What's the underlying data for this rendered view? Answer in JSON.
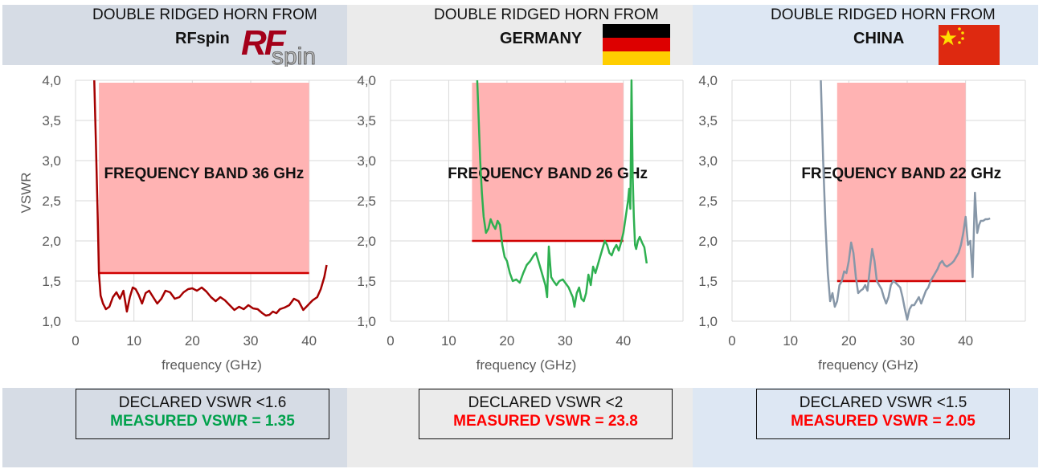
{
  "panels": [
    {
      "header_line1": "DOUBLE RIDGED HORN FROM",
      "header_line2": "RFspin",
      "logo_text": "RFspin",
      "band_label": "FREQUENCY BAND 36 GHz",
      "declared": "DECLARED VSWR <1.6",
      "measured": "MEASURED VSWR = 1.35",
      "measured_color": "#00a14b",
      "header_bg": "#d6dce5",
      "footer_bg": "#d6dce5"
    },
    {
      "header_line1": "DOUBLE RIDGED HORN FROM",
      "header_line2": "GERMANY",
      "band_label": "FREQUENCY BAND 26 GHz",
      "declared": "DECLARED VSWR <2",
      "measured": "MEASURED VSWR = 23.8",
      "measured_color": "#ff0000",
      "header_bg": "#ebebeb",
      "footer_bg": "#ebebeb"
    },
    {
      "header_line1": "DOUBLE RIDGED HORN FROM",
      "header_line2": "CHINA",
      "band_label": "FREQUENCY BAND 22 GHz",
      "declared": "DECLARED VSWR <1.5",
      "measured": "MEASURED VSWR = 2.05",
      "measured_color": "#ff0000",
      "header_bg": "#dde7f3",
      "footer_bg": "#dde7f3"
    }
  ],
  "chart_data": [
    {
      "type": "line",
      "xlabel": "frequency (GHz)",
      "ylabel": "VSWR",
      "xlim": [
        0,
        45
      ],
      "ylim": [
        1.0,
        4.0
      ],
      "xticks": [
        0,
        10,
        20,
        30,
        40
      ],
      "xtick_labels": [
        "0",
        "10",
        "20",
        "30",
        "40"
      ],
      "yticks": [
        1.0,
        1.5,
        2.0,
        2.5,
        3.0,
        3.5,
        4.0
      ],
      "ytick_labels": [
        "1,0",
        "1,5",
        "2,0",
        "2,5",
        "3,0",
        "3,5",
        "4,0"
      ],
      "grid": true,
      "band": {
        "x0": 4,
        "x1": 40,
        "label": "FREQUENCY BAND 36 GHz"
      },
      "declared_limit": 1.6,
      "series": [
        {
          "color": "#a50000",
          "x": [
            3.2,
            3.5,
            3.8,
            4.0,
            4.3,
            4.7,
            5.2,
            5.8,
            6.4,
            7.0,
            7.6,
            8.2,
            8.8,
            9.3,
            9.8,
            10.3,
            10.8,
            11.4,
            12.0,
            12.6,
            13.3,
            14.0,
            14.7,
            15.4,
            16.2,
            17.0,
            17.8,
            18.5,
            19.3,
            20.0,
            20.8,
            21.6,
            22.4,
            23.2,
            24.0,
            24.8,
            25.6,
            26.4,
            27.2,
            28.0,
            28.8,
            29.6,
            30.4,
            31.2,
            32.0,
            32.6,
            33.2,
            33.8,
            34.4,
            35.0,
            35.8,
            36.6,
            37.4,
            38.2,
            39.0,
            39.8,
            40.6,
            41.4,
            42.0,
            42.6,
            43.0
          ],
          "y": [
            4.0,
            3.2,
            2.3,
            1.6,
            1.32,
            1.22,
            1.15,
            1.18,
            1.3,
            1.36,
            1.28,
            1.38,
            1.12,
            1.3,
            1.42,
            1.4,
            1.33,
            1.22,
            1.35,
            1.38,
            1.3,
            1.22,
            1.28,
            1.38,
            1.36,
            1.28,
            1.3,
            1.36,
            1.4,
            1.41,
            1.38,
            1.42,
            1.37,
            1.3,
            1.25,
            1.3,
            1.26,
            1.2,
            1.14,
            1.18,
            1.15,
            1.2,
            1.16,
            1.15,
            1.1,
            1.07,
            1.08,
            1.12,
            1.1,
            1.15,
            1.17,
            1.2,
            1.28,
            1.25,
            1.14,
            1.2,
            1.26,
            1.3,
            1.4,
            1.55,
            1.7
          ]
        }
      ]
    },
    {
      "type": "line",
      "xlabel": "frequency (GHz)",
      "ylabel": "",
      "xlim": [
        0,
        45
      ],
      "ylim": [
        1.0,
        4.0
      ],
      "xticks": [
        0,
        10,
        20,
        30,
        40
      ],
      "xtick_labels": [
        "0",
        "10",
        "20",
        "30",
        "40"
      ],
      "yticks": [
        1.0,
        1.5,
        2.0,
        2.5,
        3.0,
        3.5,
        4.0
      ],
      "ytick_labels": [
        "1,0",
        "1,5",
        "2,0",
        "2,5",
        "3,0",
        "3,5",
        "4,0"
      ],
      "grid": true,
      "band": {
        "x0": 14,
        "x1": 40,
        "label": "FREQUENCY BAND 26 GHz"
      },
      "declared_limit": 2.0,
      "series": [
        {
          "color": "#2eb050",
          "x": [
            14.9,
            15.1,
            15.4,
            15.7,
            16.0,
            16.4,
            16.8,
            17.2,
            17.6,
            18.0,
            18.4,
            18.8,
            19.2,
            19.6,
            20.0,
            20.5,
            21.0,
            21.6,
            22.2,
            22.8,
            23.4,
            24.0,
            24.6,
            25.0,
            25.6,
            26.2,
            26.6,
            26.9,
            27.2,
            27.6,
            28.0,
            28.5,
            29.0,
            29.6,
            30.2,
            30.6,
            31.0,
            31.3,
            31.6,
            32.0,
            32.4,
            32.8,
            33.2,
            33.6,
            34.0,
            34.4,
            34.8,
            35.2,
            35.6,
            36.0,
            36.4,
            36.8,
            37.2,
            37.6,
            38.0,
            38.4,
            38.8,
            39.2,
            39.6,
            40.0,
            40.4,
            40.8,
            41.0,
            41.2,
            41.4,
            41.6,
            41.8,
            42.0,
            42.2,
            42.5,
            42.8,
            43.2,
            43.6,
            44.0
          ],
          "y": [
            4.0,
            3.6,
            3.0,
            2.6,
            2.3,
            2.1,
            2.15,
            2.27,
            2.2,
            2.15,
            2.25,
            2.2,
            1.95,
            1.8,
            1.75,
            1.6,
            1.5,
            1.52,
            1.48,
            1.6,
            1.7,
            1.75,
            1.82,
            1.85,
            1.7,
            1.55,
            1.45,
            1.3,
            1.93,
            1.55,
            1.5,
            1.45,
            1.5,
            1.52,
            1.46,
            1.42,
            1.35,
            1.3,
            1.18,
            1.35,
            1.42,
            1.28,
            1.25,
            1.35,
            1.58,
            1.45,
            1.68,
            1.6,
            1.7,
            1.8,
            1.9,
            2.0,
            1.95,
            1.85,
            1.82,
            1.9,
            1.95,
            1.88,
            1.98,
            2.1,
            2.3,
            2.5,
            2.65,
            2.4,
            4.0,
            2.8,
            2.3,
            1.95,
            1.9,
            2.0,
            2.05,
            1.98,
            1.92,
            1.72
          ]
        }
      ]
    },
    {
      "type": "line",
      "xlabel": "frequency (GHz)",
      "ylabel": "",
      "xlim": [
        0,
        45
      ],
      "ylim": [
        1.0,
        4.0
      ],
      "xticks": [
        0,
        10,
        20,
        30,
        40
      ],
      "xtick_labels": [
        "0",
        "10",
        "20",
        "30",
        "40"
      ],
      "yticks": [
        1.0,
        1.5,
        2.0,
        2.5,
        3.0,
        3.5,
        4.0
      ],
      "ytick_labels": [
        "1,0",
        "1,5",
        "2,0",
        "2,5",
        "3,0",
        "3,5",
        "4,0"
      ],
      "grid": true,
      "band": {
        "x0": 18,
        "x1": 40,
        "label": "FREQUENCY BAND 22 GHz"
      },
      "declared_limit": 1.5,
      "series": [
        {
          "color": "#8797a8",
          "x": [
            15.2,
            15.6,
            16.0,
            16.4,
            16.8,
            17.2,
            17.6,
            18.0,
            18.4,
            18.8,
            19.2,
            19.6,
            20.0,
            20.4,
            20.8,
            21.2,
            21.6,
            22.0,
            22.4,
            22.8,
            23.2,
            23.6,
            24.0,
            24.4,
            24.8,
            25.2,
            25.6,
            26.0,
            26.4,
            26.8,
            27.2,
            27.6,
            28.0,
            28.4,
            28.8,
            29.2,
            29.6,
            30.0,
            30.4,
            30.8,
            31.2,
            31.6,
            32.0,
            32.4,
            32.8,
            33.2,
            33.6,
            34.0,
            34.4,
            34.8,
            35.2,
            35.6,
            36.0,
            36.4,
            36.8,
            37.2,
            37.6,
            38.0,
            38.4,
            38.8,
            39.2,
            39.6,
            40.0,
            40.4,
            40.8,
            41.2,
            41.6,
            42.0,
            42.3,
            42.6,
            43.0,
            43.4,
            43.8,
            44.2
          ],
          "y": [
            4.0,
            3.0,
            2.2,
            1.6,
            1.25,
            1.35,
            1.18,
            1.25,
            1.45,
            1.5,
            1.62,
            1.6,
            1.75,
            1.98,
            1.85,
            1.55,
            1.35,
            1.38,
            1.4,
            1.45,
            1.38,
            1.65,
            1.9,
            1.75,
            1.5,
            1.45,
            1.4,
            1.3,
            1.22,
            1.3,
            1.45,
            1.5,
            1.48,
            1.45,
            1.42,
            1.3,
            1.15,
            1.02,
            1.15,
            1.2,
            1.2,
            1.25,
            1.3,
            1.22,
            1.3,
            1.38,
            1.42,
            1.5,
            1.55,
            1.6,
            1.65,
            1.72,
            1.75,
            1.7,
            1.68,
            1.7,
            1.72,
            1.75,
            1.8,
            1.85,
            1.95,
            2.1,
            2.3,
            1.95,
            2.0,
            1.55,
            2.6,
            2.1,
            2.2,
            2.25,
            2.25,
            2.27,
            2.27,
            2.28
          ]
        }
      ]
    }
  ]
}
